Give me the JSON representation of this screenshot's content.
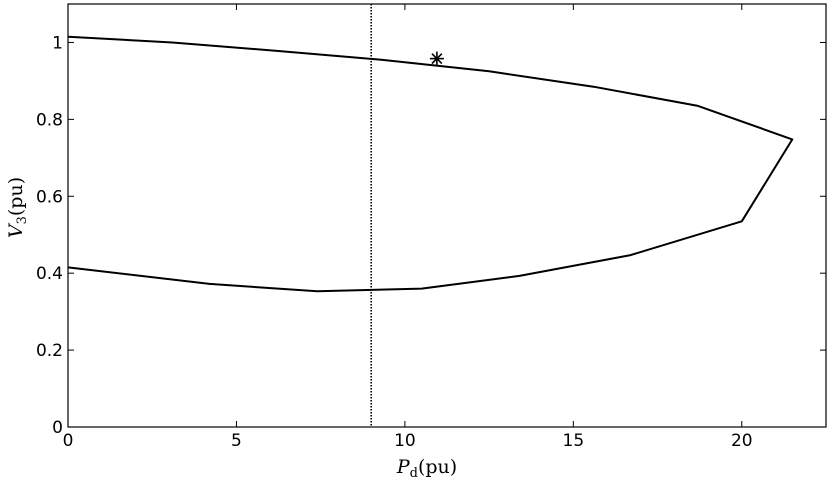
{
  "chart_data": {
    "type": "line",
    "title": "",
    "xlabel_main": "P",
    "xlabel_sub": "d",
    "xlabel_unit": "(pu)",
    "ylabel_main": "V",
    "ylabel_sub": "3",
    "ylabel_unit": "(pu)",
    "xlim": [
      0,
      22.5
    ],
    "ylim": [
      0,
      1.1
    ],
    "xticks": [
      0,
      5,
      10,
      15,
      20
    ],
    "yticks": [
      0,
      0.2,
      0.4,
      0.6,
      0.8,
      1
    ],
    "xtick_labels": [
      "0",
      "5",
      "10",
      "15",
      "20"
    ],
    "ytick_labels": [
      "0",
      "0.2",
      "0.4",
      "0.6",
      "0.8",
      "1"
    ],
    "grid": false,
    "series": [
      {
        "x": [
          0,
          3.1,
          6.2,
          9.3,
          12.5,
          15.6,
          18.7,
          21.5,
          20.0,
          16.7,
          13.4,
          10.5,
          7.4,
          4.2,
          0
        ],
        "y": [
          1.015,
          1.0,
          0.978,
          0.955,
          0.925,
          0.885,
          0.835,
          0.748,
          0.535,
          0.447,
          0.393,
          0.36,
          0.353,
          0.372,
          0.415
        ]
      }
    ],
    "vertical_line": {
      "x": 9.0,
      "style": "dotted"
    },
    "marker": {
      "x": 10.95,
      "y": 0.958,
      "symbol": "asterisk"
    }
  }
}
